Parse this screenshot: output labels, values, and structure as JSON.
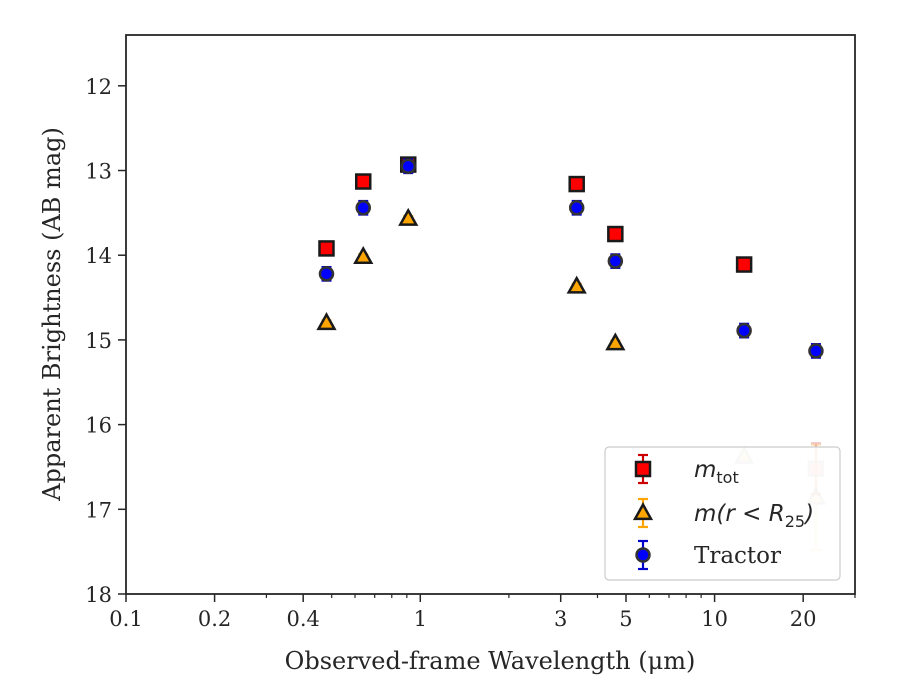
{
  "chart_data": {
    "type": "scatter",
    "title": "",
    "xlabel": "Observed-frame Wavelength (μm)",
    "ylabel": "Apparent Brightness (AB mag)",
    "xscale": "log",
    "xlim": [
      0.1,
      30
    ],
    "ylim": [
      18,
      11.4
    ],
    "y_inverted": true,
    "grid": false,
    "legend_position": "lower-right",
    "x_ticks": [
      {
        "value": 0.1,
        "label": "0.1"
      },
      {
        "value": 0.2,
        "label": "0.2"
      },
      {
        "value": 0.4,
        "label": "0.4"
      },
      {
        "value": 1,
        "label": "1"
      },
      {
        "value": 3,
        "label": "3"
      },
      {
        "value": 5,
        "label": "5"
      },
      {
        "value": 10,
        "label": "10"
      },
      {
        "value": 20,
        "label": "20"
      }
    ],
    "x_minor_ticks": [
      0.3,
      0.5,
      0.6,
      0.7,
      0.8,
      0.9,
      2,
      4,
      6,
      7,
      8,
      9,
      30
    ],
    "y_ticks": [
      {
        "value": 12,
        "label": "12"
      },
      {
        "value": 13,
        "label": "13"
      },
      {
        "value": 14,
        "label": "14"
      },
      {
        "value": 15,
        "label": "15"
      },
      {
        "value": 16,
        "label": "16"
      },
      {
        "value": 17,
        "label": "17"
      },
      {
        "value": 18,
        "label": "18"
      }
    ],
    "series": [
      {
        "key": "mtot",
        "name_main": "m",
        "name_sub": "tot",
        "marker": "square",
        "color": "#ff0000",
        "edge": "#1a1a1a",
        "error_color": "#cc0000",
        "points": [
          {
            "x": 0.48,
            "y": 13.92,
            "err": 0.05
          },
          {
            "x": 0.64,
            "y": 13.13,
            "err": 0.05
          },
          {
            "x": 0.91,
            "y": 12.93,
            "err": 0.05
          },
          {
            "x": 3.4,
            "y": 13.16,
            "err": 0.05
          },
          {
            "x": 4.6,
            "y": 13.75,
            "err": 0.05
          },
          {
            "x": 12.6,
            "y": 14.11,
            "err": 0.05
          },
          {
            "x": 22.1,
            "y": 16.52,
            "err": 0.3,
            "faded": true
          }
        ]
      },
      {
        "key": "mr25",
        "name_main": "m(r < R",
        "name_sub": "25",
        "name_end": ")",
        "marker": "triangle",
        "color": "#ffa500",
        "edge": "#1a1a1a",
        "error_color": "#ffa500",
        "points": [
          {
            "x": 0.48,
            "y": 14.8,
            "err": 0.03
          },
          {
            "x": 0.64,
            "y": 14.02,
            "err": 0.03
          },
          {
            "x": 0.91,
            "y": 13.57,
            "err": 0.03
          },
          {
            "x": 3.4,
            "y": 14.37,
            "err": 0.03
          },
          {
            "x": 4.6,
            "y": 15.04,
            "err": 0.03
          },
          {
            "x": 12.6,
            "y": 16.38,
            "err": 0.05,
            "faded": true
          },
          {
            "x": 22.1,
            "y": 16.86,
            "err": 0.62,
            "faded": true
          }
        ]
      },
      {
        "key": "tractor",
        "name_main": "Tractor",
        "marker": "circle",
        "color": "#0000ff",
        "edge": "#333333",
        "error_color": "#0000cc",
        "points": [
          {
            "x": 0.48,
            "y": 14.22,
            "err": 0.08
          },
          {
            "x": 0.64,
            "y": 13.44,
            "err": 0.08
          },
          {
            "x": 0.91,
            "y": 12.95,
            "err": 0.08
          },
          {
            "x": 3.4,
            "y": 13.44,
            "err": 0.08
          },
          {
            "x": 4.6,
            "y": 14.07,
            "err": 0.08
          },
          {
            "x": 12.6,
            "y": 14.89,
            "err": 0.08
          },
          {
            "x": 22.1,
            "y": 15.13,
            "err": 0.08
          }
        ]
      }
    ]
  }
}
